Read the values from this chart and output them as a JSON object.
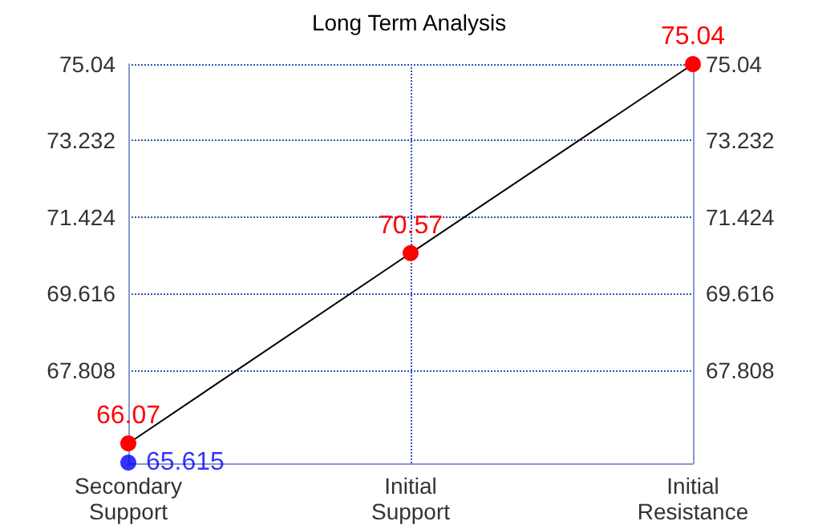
{
  "chart_data": {
    "type": "line",
    "title": "Long Term Analysis",
    "categories": [
      "Secondary\nSupport",
      "Initial\nSupport",
      "Initial\nResistance"
    ],
    "series": [
      {
        "color": "#ff0000",
        "values": [
          66.07,
          70.57,
          75.04
        ],
        "value_labels": [
          "66.07",
          "70.57",
          "75.04"
        ]
      },
      {
        "type": "scatter",
        "color": "#0000ff",
        "values": [
          65.615,
          null,
          null
        ],
        "value_labels": [
          "65.615",
          null,
          null
        ]
      }
    ],
    "ylim": [
      65.6,
      75.04
    ],
    "yticks": [
      67.808,
      69.616,
      71.424,
      73.232,
      75.04
    ],
    "y2lim": [
      65.6,
      75.04
    ],
    "y2ticks": [
      67.808,
      69.616,
      71.424,
      73.232,
      75.04
    ],
    "grid": true,
    "marker": "circle"
  }
}
